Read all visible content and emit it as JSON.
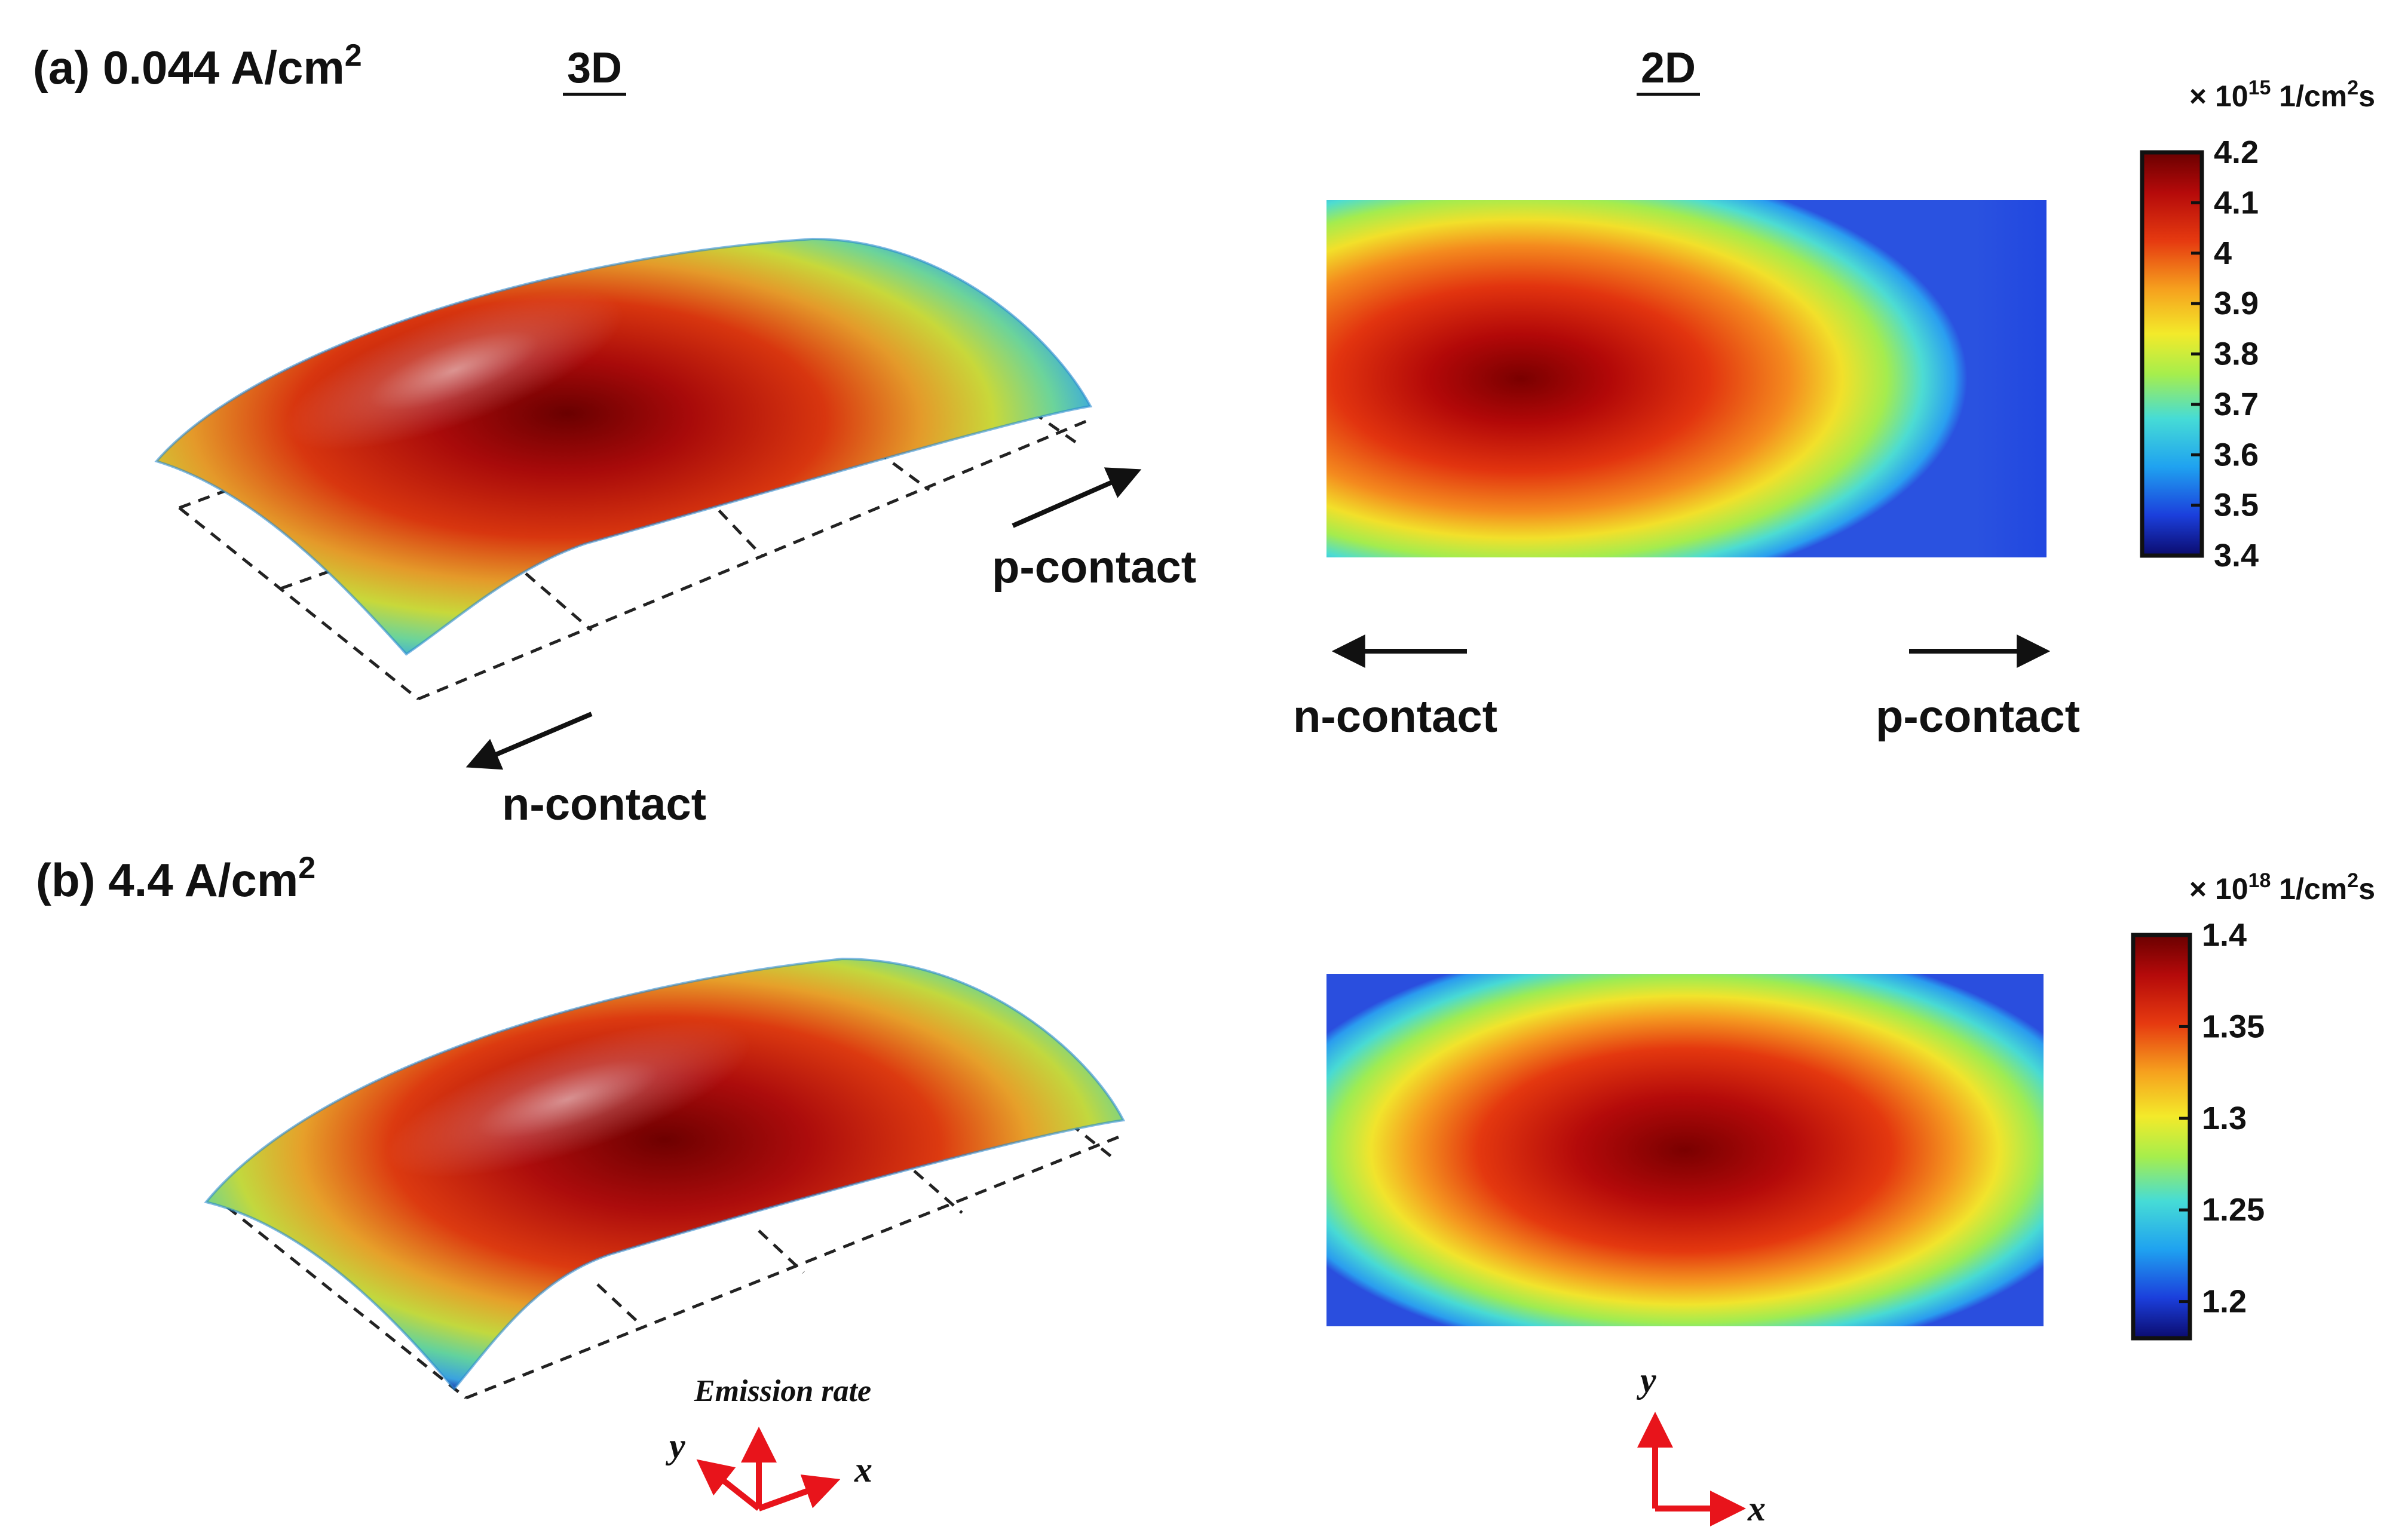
{
  "panels": [
    {
      "label": "(a) 0.044 A/cm",
      "label_sup": "2",
      "view_3d_label": "3D",
      "view_2d_label": "2D",
      "contacts_3d": {
        "p": "p-contact",
        "n": "n-contact"
      },
      "contacts_2d": {
        "n": "n-contact",
        "p": "p-contact"
      },
      "colorbar": {
        "multiplier_prefix": "× 10",
        "exponent": "15",
        "unit_a": " 1/cm",
        "unit_sup": "2",
        "unit_b": "s",
        "ticks": [
          "4.2",
          "4.1",
          "4",
          "3.9",
          "3.8",
          "3.7",
          "3.6",
          "3.5",
          "3.4"
        ],
        "min": 3.4,
        "max": 4.2
      },
      "peak_location": "left-center"
    },
    {
      "label": "(b) 4.4 A/cm",
      "label_sup": "2",
      "colorbar": {
        "multiplier_prefix": "× 10",
        "exponent": "18",
        "unit_a": " 1/cm",
        "unit_sup": "2",
        "unit_b": "s",
        "ticks": [
          "1.4",
          "1.35",
          "1.3",
          "1.25",
          "1.2"
        ],
        "min": 1.18,
        "max": 1.4
      },
      "peak_location": "center"
    }
  ],
  "axes_3d": {
    "title": "Emission rate",
    "x": "x",
    "y": "y"
  },
  "axes_2d": {
    "x": "x",
    "y": "y"
  },
  "colors": {
    "arrow_axes": "#e8141b",
    "colormap": [
      "#0a0a7a",
      "#1c3fe0",
      "#1ea6f0",
      "#4de0d8",
      "#b6f04a",
      "#f5e82a",
      "#f7a020",
      "#e84010",
      "#b80c0c",
      "#7a0000"
    ]
  }
}
